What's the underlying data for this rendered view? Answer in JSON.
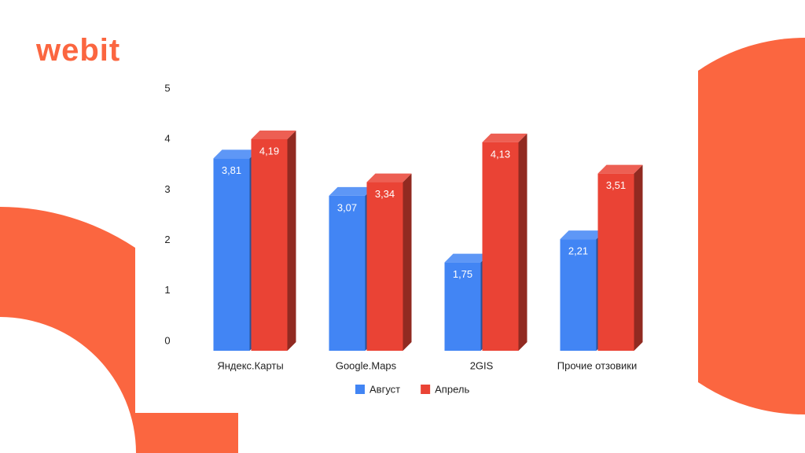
{
  "logo": "webit",
  "chart_data": {
    "type": "bar3d",
    "categories": [
      "Яндекс.Карты",
      "Google.Maps",
      "2GIS",
      "Прочие отзовики"
    ],
    "series": [
      {
        "name": "Август",
        "color": "#4285f4",
        "values": [
          3.81,
          3.07,
          1.75,
          2.21
        ],
        "value_labels": [
          "3,81",
          "3,07",
          "1,75",
          "2,21"
        ]
      },
      {
        "name": "Апрель",
        "color": "#ea4335",
        "values": [
          4.19,
          3.34,
          4.13,
          3.51
        ],
        "value_labels": [
          "4,19",
          "3,34",
          "4,13",
          "3,51"
        ]
      }
    ],
    "ylim": [
      0,
      5
    ],
    "yticks": [
      0,
      1,
      2,
      3,
      4,
      5
    ],
    "legend": "bottom"
  }
}
